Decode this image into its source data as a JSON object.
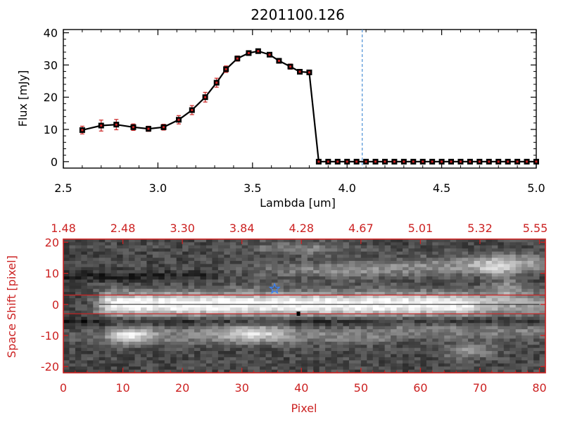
{
  "title": "2201100.126",
  "colors": {
    "red": "#cc2222",
    "dash": "#4a8fd6",
    "star": "#3b82f6"
  },
  "chart_data": [
    {
      "type": "line",
      "title": "2201100.126",
      "xlabel": "Lambda [um]",
      "ylabel": "Flux [mJy]",
      "xlim": [
        2.5,
        5.0
      ],
      "ylim": [
        -2,
        41
      ],
      "x_ticks": [
        "2.5",
        "3.0",
        "3.5",
        "4.0",
        "4.5",
        "5.0"
      ],
      "y_ticks": [
        "0",
        "10",
        "20",
        "30",
        "40"
      ],
      "vline_x": 4.08,
      "series": [
        {
          "x": [
            2.6,
            2.7,
            2.78,
            2.87,
            2.95,
            3.03,
            3.11,
            3.18,
            3.25,
            3.31,
            3.36,
            3.42,
            3.48,
            3.53,
            3.59,
            3.64,
            3.7,
            3.75,
            3.8,
            3.85,
            3.9,
            3.95,
            4.0,
            4.05,
            4.1,
            4.15,
            4.2,
            4.25,
            4.3,
            4.35,
            4.4,
            4.45,
            4.5,
            4.55,
            4.6,
            4.65,
            4.7,
            4.75,
            4.8,
            4.85,
            4.9,
            4.95,
            5.0
          ],
          "y": [
            9.8,
            11.2,
            11.5,
            10.7,
            10.2,
            10.7,
            13.0,
            16.0,
            20.0,
            24.5,
            28.7,
            32.0,
            33.7,
            34.3,
            33.2,
            31.3,
            29.5,
            27.9,
            27.7,
            0,
            0,
            0,
            0,
            0,
            0,
            0,
            0,
            0,
            0,
            0,
            0,
            0,
            0,
            0,
            0,
            0,
            0,
            0,
            0,
            0,
            0,
            0,
            0
          ],
          "yerr": [
            1.2,
            1.7,
            1.6,
            1.0,
            0.8,
            0.9,
            1.3,
            1.4,
            1.5,
            1.4,
            1.0,
            0.8,
            0.7,
            0.6,
            0.6,
            0.7,
            0.8,
            0.7,
            0.6,
            0,
            0,
            0,
            0,
            0,
            0,
            0,
            0,
            0,
            0,
            0,
            0,
            0,
            0,
            0,
            0,
            0,
            0,
            0,
            0,
            0,
            0,
            0,
            0
          ]
        }
      ]
    },
    {
      "type": "heatmap",
      "xlabel": "Pixel",
      "ylabel": "Space Shift [pixel]",
      "xlim": [
        0,
        81
      ],
      "ylim": [
        -22,
        21
      ],
      "x_ticks": [
        "0",
        "10",
        "20",
        "30",
        "40",
        "50",
        "60",
        "70",
        "80"
      ],
      "y_ticks": [
        "-20",
        "-10",
        "0",
        "10",
        "20"
      ],
      "top_ticks": [
        "1.48",
        "2.48",
        "3.30",
        "3.84",
        "4.28",
        "4.67",
        "5.01",
        "5.32",
        "5.55"
      ],
      "hlines": [
        3,
        -3
      ],
      "star": {
        "x": 35.5,
        "y": 5.0
      },
      "marker": {
        "x": 39.5,
        "y": -3.0
      }
    }
  ]
}
